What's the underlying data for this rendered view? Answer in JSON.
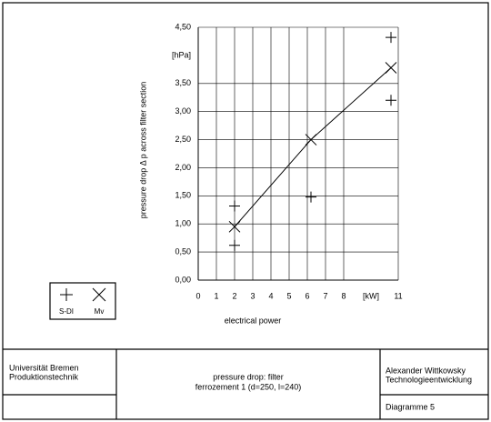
{
  "chart_data": {
    "type": "scatter",
    "y_label": "pressure drop Δ p across filter section",
    "x_label": "electrical power",
    "x_unit": "[kW]",
    "y_unit": "[hPa]",
    "xlim": [
      0,
      11
    ],
    "ylim": [
      0,
      4.5
    ],
    "xticks": [
      0,
      1,
      2,
      3,
      4,
      5,
      6,
      7,
      8,
      11
    ],
    "yticks": [
      {
        "value": 0,
        "label": "0,00"
      },
      {
        "value": 0.5,
        "label": "0,50"
      },
      {
        "value": 1,
        "label": "1,00"
      },
      {
        "value": 1.5,
        "label": "1,50"
      },
      {
        "value": 2,
        "label": "2,00"
      },
      {
        "value": 2.5,
        "label": "2,50"
      },
      {
        "value": 3,
        "label": "3,00"
      },
      {
        "value": 3.5,
        "label": "3,50"
      },
      {
        "value": 4.5,
        "label": "4,50"
      }
    ],
    "grid": true,
    "series": [
      {
        "name": "S-DI",
        "color": "#000000",
        "marker": "plus",
        "line": false,
        "x": [
          2,
          2,
          6.2,
          10.6,
          10.6
        ],
        "values": [
          1.32,
          0.62,
          1.48,
          3.2,
          4.32
        ]
      },
      {
        "name": "Mv",
        "color": "#000000",
        "marker": "cross",
        "line": true,
        "x": [
          2,
          6.2,
          10.6
        ],
        "values": [
          0.95,
          2.5,
          3.78
        ]
      }
    ]
  },
  "title_block": {
    "institution": [
      "Universität Bremen",
      "Produktionstechnik"
    ],
    "title": [
      "pressure drop: filter",
      "ferrozement 1 (d=250, l=240)"
    ],
    "author": [
      "Alexander Wittkowsky",
      "Technologieentwicklung"
    ],
    "diagram": "Diagramme 5"
  }
}
